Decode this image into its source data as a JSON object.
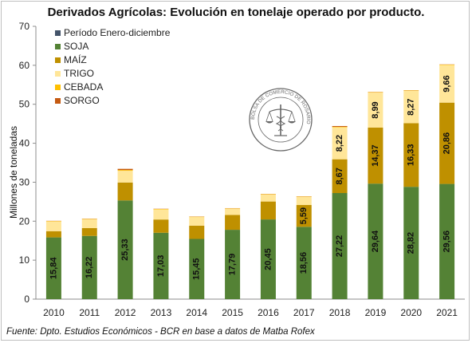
{
  "chart_data": {
    "type": "bar",
    "stacked": true,
    "title": "Derivados Agrícolas: Evolución en tonelaje operado por producto.",
    "ylabel": "Millones de toneladas",
    "xlabel": "",
    "ylim": [
      0,
      70
    ],
    "yticks": [
      0,
      10,
      20,
      30,
      40,
      50,
      60,
      70
    ],
    "grid": false,
    "legend_position": "top-left",
    "legend_title": "Período Enero-diciembre",
    "categories": [
      "2010",
      "2011",
      "2012",
      "2013",
      "2014",
      "2015",
      "2016",
      "2017",
      "2018",
      "2019",
      "2020",
      "2021"
    ],
    "series": [
      {
        "name": "SOJA",
        "color": "#548235",
        "values": [
          15.84,
          16.22,
          25.33,
          17.03,
          15.45,
          17.79,
          20.45,
          18.56,
          27.22,
          29.64,
          28.82,
          29.56
        ],
        "labels": [
          "15,84",
          "16,22",
          "25,33",
          "17,03",
          "15,45",
          "17,79",
          "20,45",
          "18,56",
          "27,22",
          "29,64",
          "28,82",
          "29,56"
        ]
      },
      {
        "name": "MAÍZ",
        "color": "#bf9000",
        "values": [
          1.6,
          2.0,
          4.6,
          3.4,
          3.4,
          3.8,
          4.6,
          5.59,
          8.67,
          14.37,
          16.33,
          20.86
        ],
        "labels": [
          "",
          "",
          "",
          "",
          "",
          "",
          "",
          "5,59",
          "8,67",
          "14,37",
          "16,33",
          "20,86"
        ]
      },
      {
        "name": "TRIGO",
        "color": "#ffe699",
        "values": [
          2.5,
          2.3,
          3.0,
          2.6,
          2.2,
          1.6,
          1.8,
          2.1,
          8.22,
          8.99,
          8.27,
          9.66
        ],
        "labels": [
          "",
          "",
          "",
          "",
          "",
          "",
          "",
          "",
          "8,22",
          "8,99",
          "8,27",
          "9,66"
        ]
      },
      {
        "name": "CEBADA",
        "color": "#ffc000",
        "values": [
          0.1,
          0.1,
          0.2,
          0.1,
          0.1,
          0.1,
          0.1,
          0.1,
          0.1,
          0.1,
          0.1,
          0.1
        ],
        "labels": [
          "",
          "",
          "",
          "",
          "",
          "",
          "",
          "",
          "",
          "",
          "",
          ""
        ]
      },
      {
        "name": "SORGO",
        "color": "#c55a11",
        "values": [
          0.05,
          0.05,
          0.3,
          0.05,
          0.05,
          0.05,
          0.05,
          0.05,
          0.2,
          0.05,
          0.05,
          0.05
        ],
        "labels": [
          "",
          "",
          "",
          "",
          "",
          "",
          "",
          "",
          "",
          "",
          "",
          ""
        ]
      }
    ]
  },
  "legend_colors": {
    "period": "#44546a"
  },
  "logo": {
    "name": "bcr-seal-icon",
    "text": "BOLSA DE COMERCIO DE ROSARIO"
  },
  "source": "Fuente: Dpto. Estudios Económicos - BCR en base a datos de Matba Rofex"
}
